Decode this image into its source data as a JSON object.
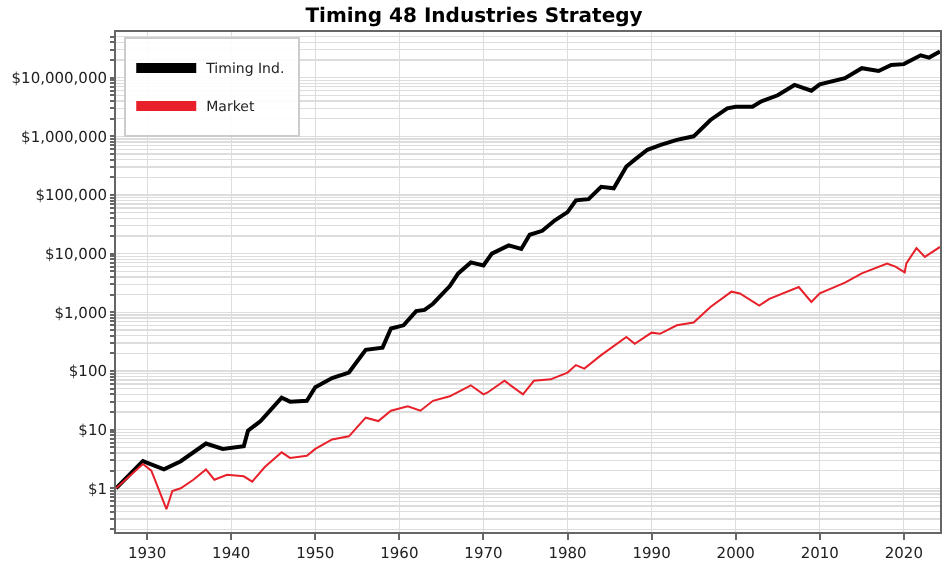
{
  "chart_data": {
    "type": "line",
    "title": "Timing 48 Industries Strategy",
    "log": "y",
    "grid": true,
    "legend": "top left",
    "xlim": [
      1926.3,
      2024.3
    ],
    "xticks": [
      1930,
      1940,
      1950,
      1960,
      1970,
      1980,
      1990,
      2000,
      2010,
      2020
    ],
    "ylim": [
      0.18,
      60000000
    ],
    "yticks": [
      {
        "value": 0.2,
        "label": null
      },
      {
        "value": 0.3,
        "label": null
      },
      {
        "value": 0.4,
        "label": null
      },
      {
        "value": 0.5,
        "label": null
      },
      {
        "value": 0.6,
        "label": null
      },
      {
        "value": 0.7,
        "label": null
      },
      {
        "value": 0.8,
        "label": null
      },
      {
        "value": 0.9,
        "label": null
      },
      {
        "value": 1,
        "label": "$1"
      },
      {
        "value": 2,
        "label": null
      },
      {
        "value": 3,
        "label": null
      },
      {
        "value": 4,
        "label": null
      },
      {
        "value": 5,
        "label": null
      },
      {
        "value": 6,
        "label": null
      },
      {
        "value": 7,
        "label": null
      },
      {
        "value": 8,
        "label": null
      },
      {
        "value": 9,
        "label": null
      },
      {
        "value": 10,
        "label": "$10"
      },
      {
        "value": 20,
        "label": null
      },
      {
        "value": 30,
        "label": null
      },
      {
        "value": 40,
        "label": null
      },
      {
        "value": 50,
        "label": null
      },
      {
        "value": 60,
        "label": null
      },
      {
        "value": 70,
        "label": null
      },
      {
        "value": 80,
        "label": null
      },
      {
        "value": 90,
        "label": null
      },
      {
        "value": 100,
        "label": "$100"
      },
      {
        "value": 200,
        "label": null
      },
      {
        "value": 300,
        "label": null
      },
      {
        "value": 400,
        "label": null
      },
      {
        "value": 500,
        "label": null
      },
      {
        "value": 600,
        "label": null
      },
      {
        "value": 700,
        "label": null
      },
      {
        "value": 800,
        "label": null
      },
      {
        "value": 900,
        "label": null
      },
      {
        "value": 1000,
        "label": "$1,000"
      },
      {
        "value": 2000,
        "label": null
      },
      {
        "value": 3000,
        "label": null
      },
      {
        "value": 4000,
        "label": null
      },
      {
        "value": 5000,
        "label": null
      },
      {
        "value": 6000,
        "label": null
      },
      {
        "value": 7000,
        "label": null
      },
      {
        "value": 8000,
        "label": null
      },
      {
        "value": 9000,
        "label": null
      },
      {
        "value": 10000,
        "label": "$10,000"
      },
      {
        "value": 20000,
        "label": null
      },
      {
        "value": 30000,
        "label": null
      },
      {
        "value": 40000,
        "label": null
      },
      {
        "value": 50000,
        "label": null
      },
      {
        "value": 60000,
        "label": null
      },
      {
        "value": 70000,
        "label": null
      },
      {
        "value": 80000,
        "label": null
      },
      {
        "value": 90000,
        "label": null
      },
      {
        "value": 100000,
        "label": "$100,000"
      },
      {
        "value": 200000,
        "label": null
      },
      {
        "value": 300000,
        "label": null
      },
      {
        "value": 400000,
        "label": null
      },
      {
        "value": 500000,
        "label": null
      },
      {
        "value": 600000,
        "label": null
      },
      {
        "value": 700000,
        "label": null
      },
      {
        "value": 800000,
        "label": null
      },
      {
        "value": 900000,
        "label": null
      },
      {
        "value": 1000000,
        "label": "$1,000,000"
      },
      {
        "value": 2000000,
        "label": null
      },
      {
        "value": 3000000,
        "label": null
      },
      {
        "value": 4000000,
        "label": null
      },
      {
        "value": 5000000,
        "label": null
      },
      {
        "value": 6000000,
        "label": null
      },
      {
        "value": 7000000,
        "label": null
      },
      {
        "value": 8000000,
        "label": null
      },
      {
        "value": 9000000,
        "label": null
      },
      {
        "value": 10000000,
        "label": "$10,000,000"
      },
      {
        "value": 20000000,
        "label": null
      },
      {
        "value": 30000000,
        "label": null
      },
      {
        "value": 40000000,
        "label": null
      },
      {
        "value": 50000000,
        "label": null
      }
    ],
    "series": [
      {
        "name": "Timing Ind.",
        "color": "#000000",
        "x": [
          1926.3,
          1929.5,
          1932,
          1934,
          1937,
          1939,
          1941.5,
          1942,
          1943.5,
          1946,
          1947,
          1949,
          1950,
          1952,
          1954,
          1956,
          1958,
          1959,
          1960.5,
          1962,
          1963,
          1964,
          1966,
          1967,
          1968.5,
          1970,
          1971,
          1973,
          1974.5,
          1975.5,
          1977,
          1978.5,
          1980,
          1981,
          1982.5,
          1984,
          1985.5,
          1987,
          1988,
          1989.5,
          1991,
          1993,
          1995,
          1997,
          1999,
          2000,
          2002,
          2003,
          2005,
          2007,
          2009,
          2010,
          2013,
          2015,
          2017,
          2018.5,
          2020,
          2022,
          2023,
          2024.3
        ],
        "values": [
          1,
          2.9,
          2.1,
          2.9,
          5.8,
          4.7,
          5.2,
          9.6,
          14,
          35,
          30,
          31,
          53,
          76,
          94,
          230,
          250,
          530,
          600,
          1050,
          1100,
          1400,
          2800,
          4600,
          7100,
          6300,
          10000,
          13800,
          12000,
          21000,
          24500,
          37000,
          51000,
          81000,
          85000,
          138000,
          130000,
          305000,
          400000,
          590000,
          710000,
          870000,
          1000000,
          1900000,
          3000000,
          3200000,
          3200000,
          3900000,
          5000000,
          7500000,
          6000000,
          7700000,
          9800000,
          14500000,
          13000000,
          16500000,
          17000000,
          24000000,
          22000000,
          28000000
        ]
      },
      {
        "name": "Market",
        "color": "#e8202a",
        "x": [
          1926.3,
          1929.5,
          1930.5,
          1932.3,
          1933,
          1934,
          1935.5,
          1937,
          1938,
          1939.5,
          1941.5,
          1942.5,
          1944,
          1946,
          1947,
          1949,
          1950,
          1952,
          1954,
          1956,
          1957.5,
          1959,
          1961,
          1962.5,
          1964,
          1966,
          1968.5,
          1970,
          1970.5,
          1972.5,
          1974.7,
          1976,
          1978,
          1980,
          1981,
          1982,
          1984,
          1987,
          1988,
          1990,
          1991,
          1993,
          1995,
          1997,
          1999.5,
          2000.5,
          2002.8,
          2004,
          2007.5,
          2009,
          2010,
          2013,
          2015,
          2018,
          2019,
          2020.1,
          2020.3,
          2021.5,
          2022.5,
          2024.3
        ],
        "values": [
          1,
          2.6,
          2,
          0.44,
          0.9,
          1,
          1.4,
          2.1,
          1.4,
          1.7,
          1.6,
          1.3,
          2.3,
          4.1,
          3.3,
          3.6,
          4.7,
          6.8,
          7.7,
          16,
          14,
          21,
          25,
          21,
          31,
          37,
          57,
          40,
          43,
          68,
          40,
          68,
          72,
          94,
          126,
          110,
          186,
          380,
          290,
          450,
          430,
          600,
          670,
          1230,
          2250,
          2100,
          1300,
          1700,
          2700,
          1500,
          2100,
          3200,
          4600,
          6800,
          6000,
          4800,
          6800,
          12400,
          8800,
          13000
        ]
      }
    ]
  }
}
